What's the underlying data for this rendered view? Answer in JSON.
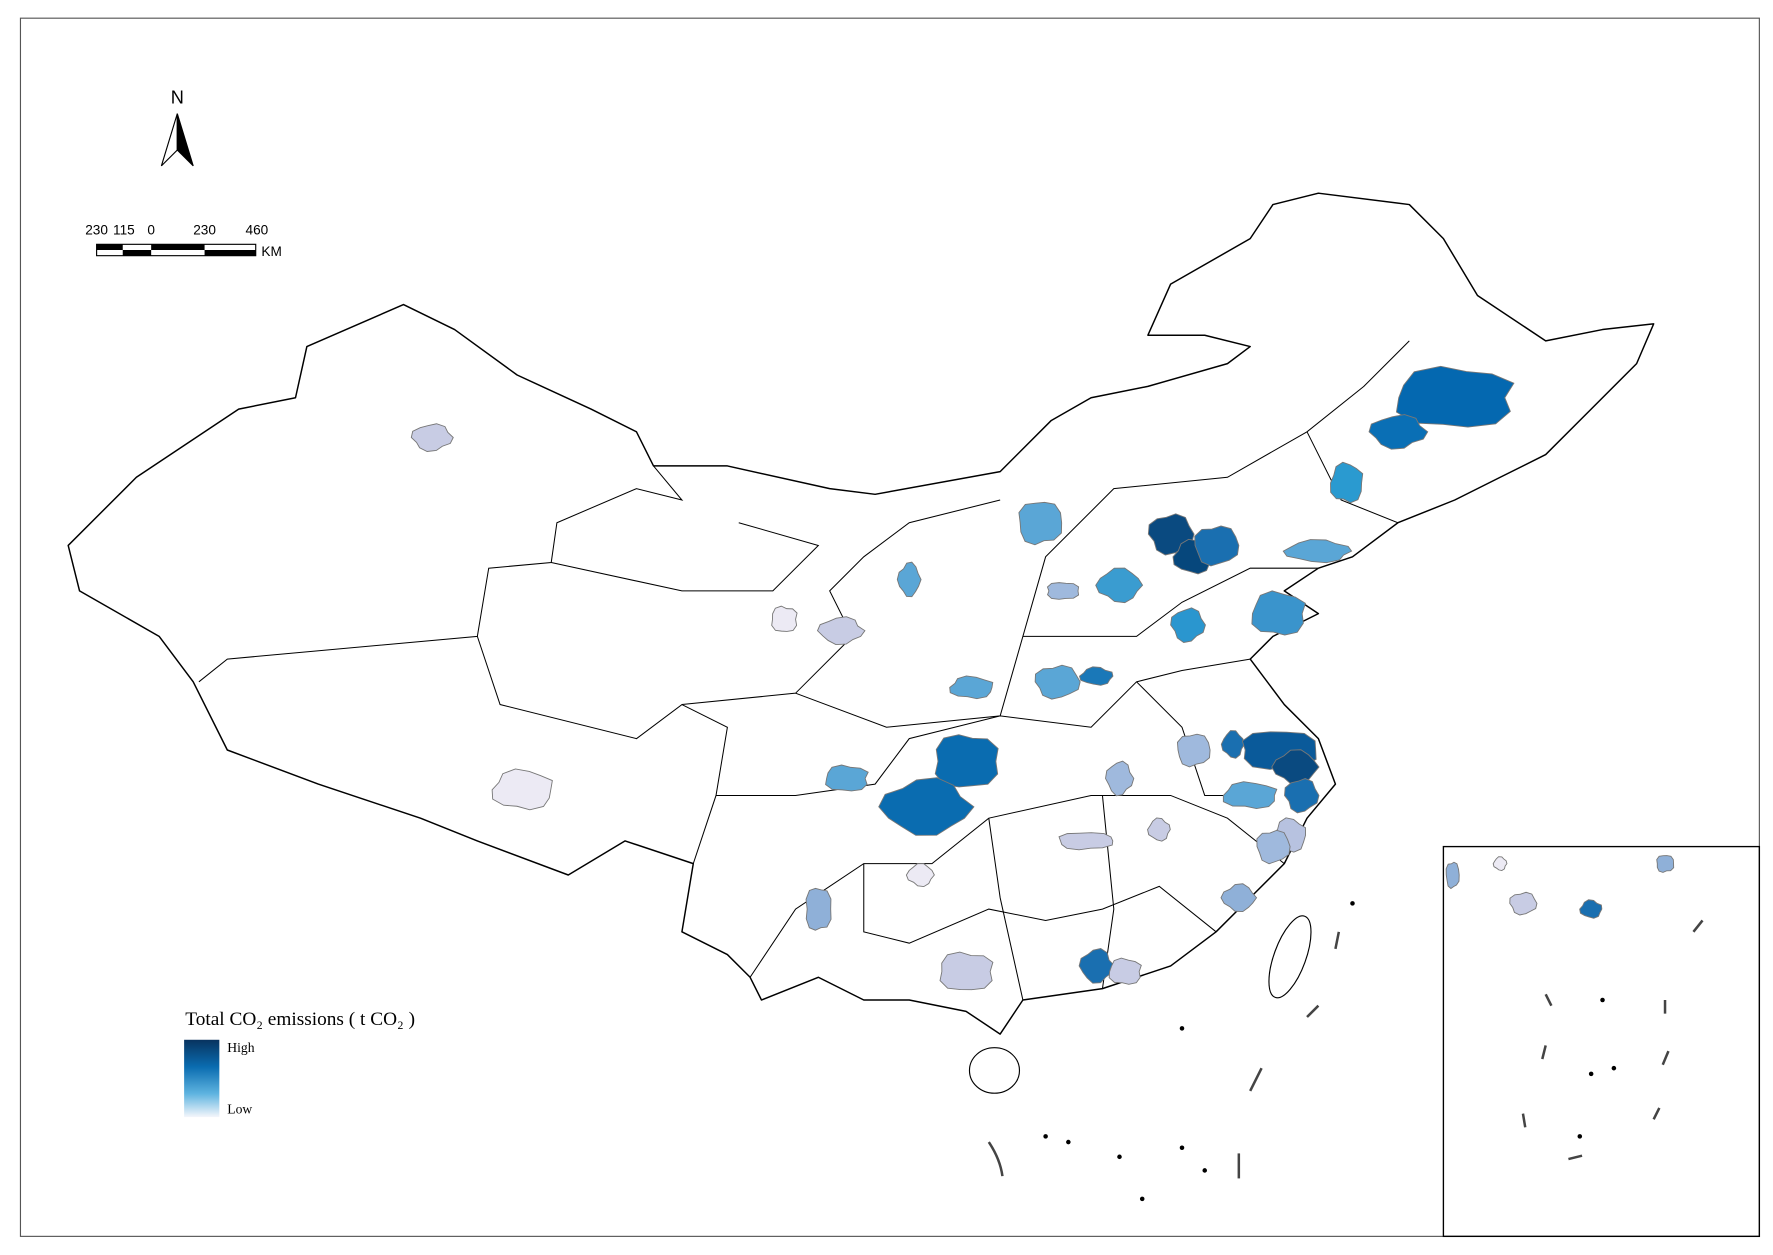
{
  "north_arrow": {
    "label": "N"
  },
  "scale_bar": {
    "labels": [
      "230",
      "115",
      "0",
      "230",
      "460"
    ],
    "unit": "KM"
  },
  "legend": {
    "title": "Total CO₂ emissions ( t CO₂ )",
    "high": "High",
    "low": "Low"
  }
}
